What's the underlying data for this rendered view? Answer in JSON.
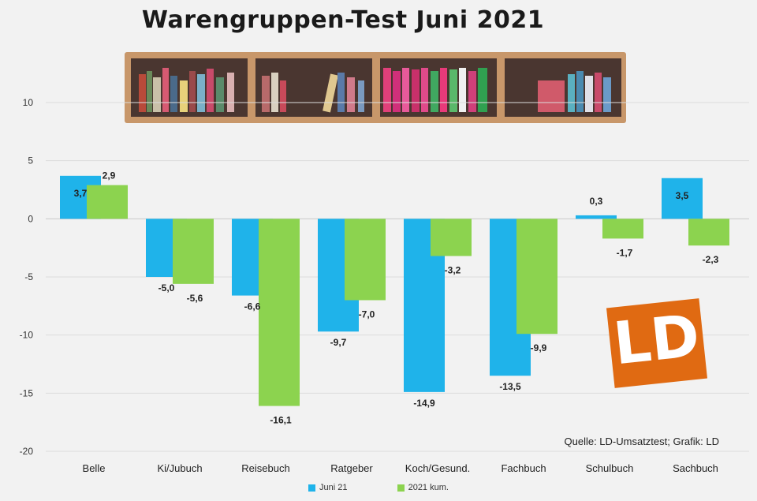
{
  "chart_data": {
    "type": "bar",
    "title": "Warengruppen-Test Juni 2021",
    "categories": [
      "Belle",
      "Ki/Jubuch",
      "Reisebuch",
      "Ratgeber",
      "Koch/Gesund.",
      "Fachbuch",
      "Schulbuch",
      "Sachbuch"
    ],
    "series": [
      {
        "name": "Juni 21",
        "color": "#1fb3ea",
        "values": [
          3.7,
          -5.0,
          -6.6,
          -9.7,
          -14.9,
          -13.5,
          0.3,
          3.5
        ]
      },
      {
        "name": "2021 kum.",
        "color": "#8cd34f",
        "values": [
          2.9,
          -5.6,
          -16.1,
          -7.0,
          -3.2,
          -9.9,
          -1.7,
          -2.3
        ]
      }
    ],
    "data_labels": [
      [
        "3,7",
        "-5,0",
        "-6,6",
        "-9,7",
        "-14,9",
        "-13,5",
        "0,3",
        "3,5"
      ],
      [
        "2,9",
        "-5,6",
        "-16,1",
        "-7,0",
        "-3,2",
        "-9,9",
        "-1,7",
        "-2,3"
      ]
    ],
    "ylim": [
      -20,
      10
    ],
    "yticks": [
      10,
      5,
      0,
      -5,
      -10,
      -15,
      -20
    ],
    "ytick_labels": [
      "10",
      "5",
      "0",
      "-5",
      "-10",
      "-15",
      "-20"
    ],
    "grid": true,
    "legend": "bottom",
    "source": "Quelle: LD-Umsatztest; Grafik: LD"
  },
  "logo": {
    "text": "LD",
    "color": "#e06a12"
  }
}
